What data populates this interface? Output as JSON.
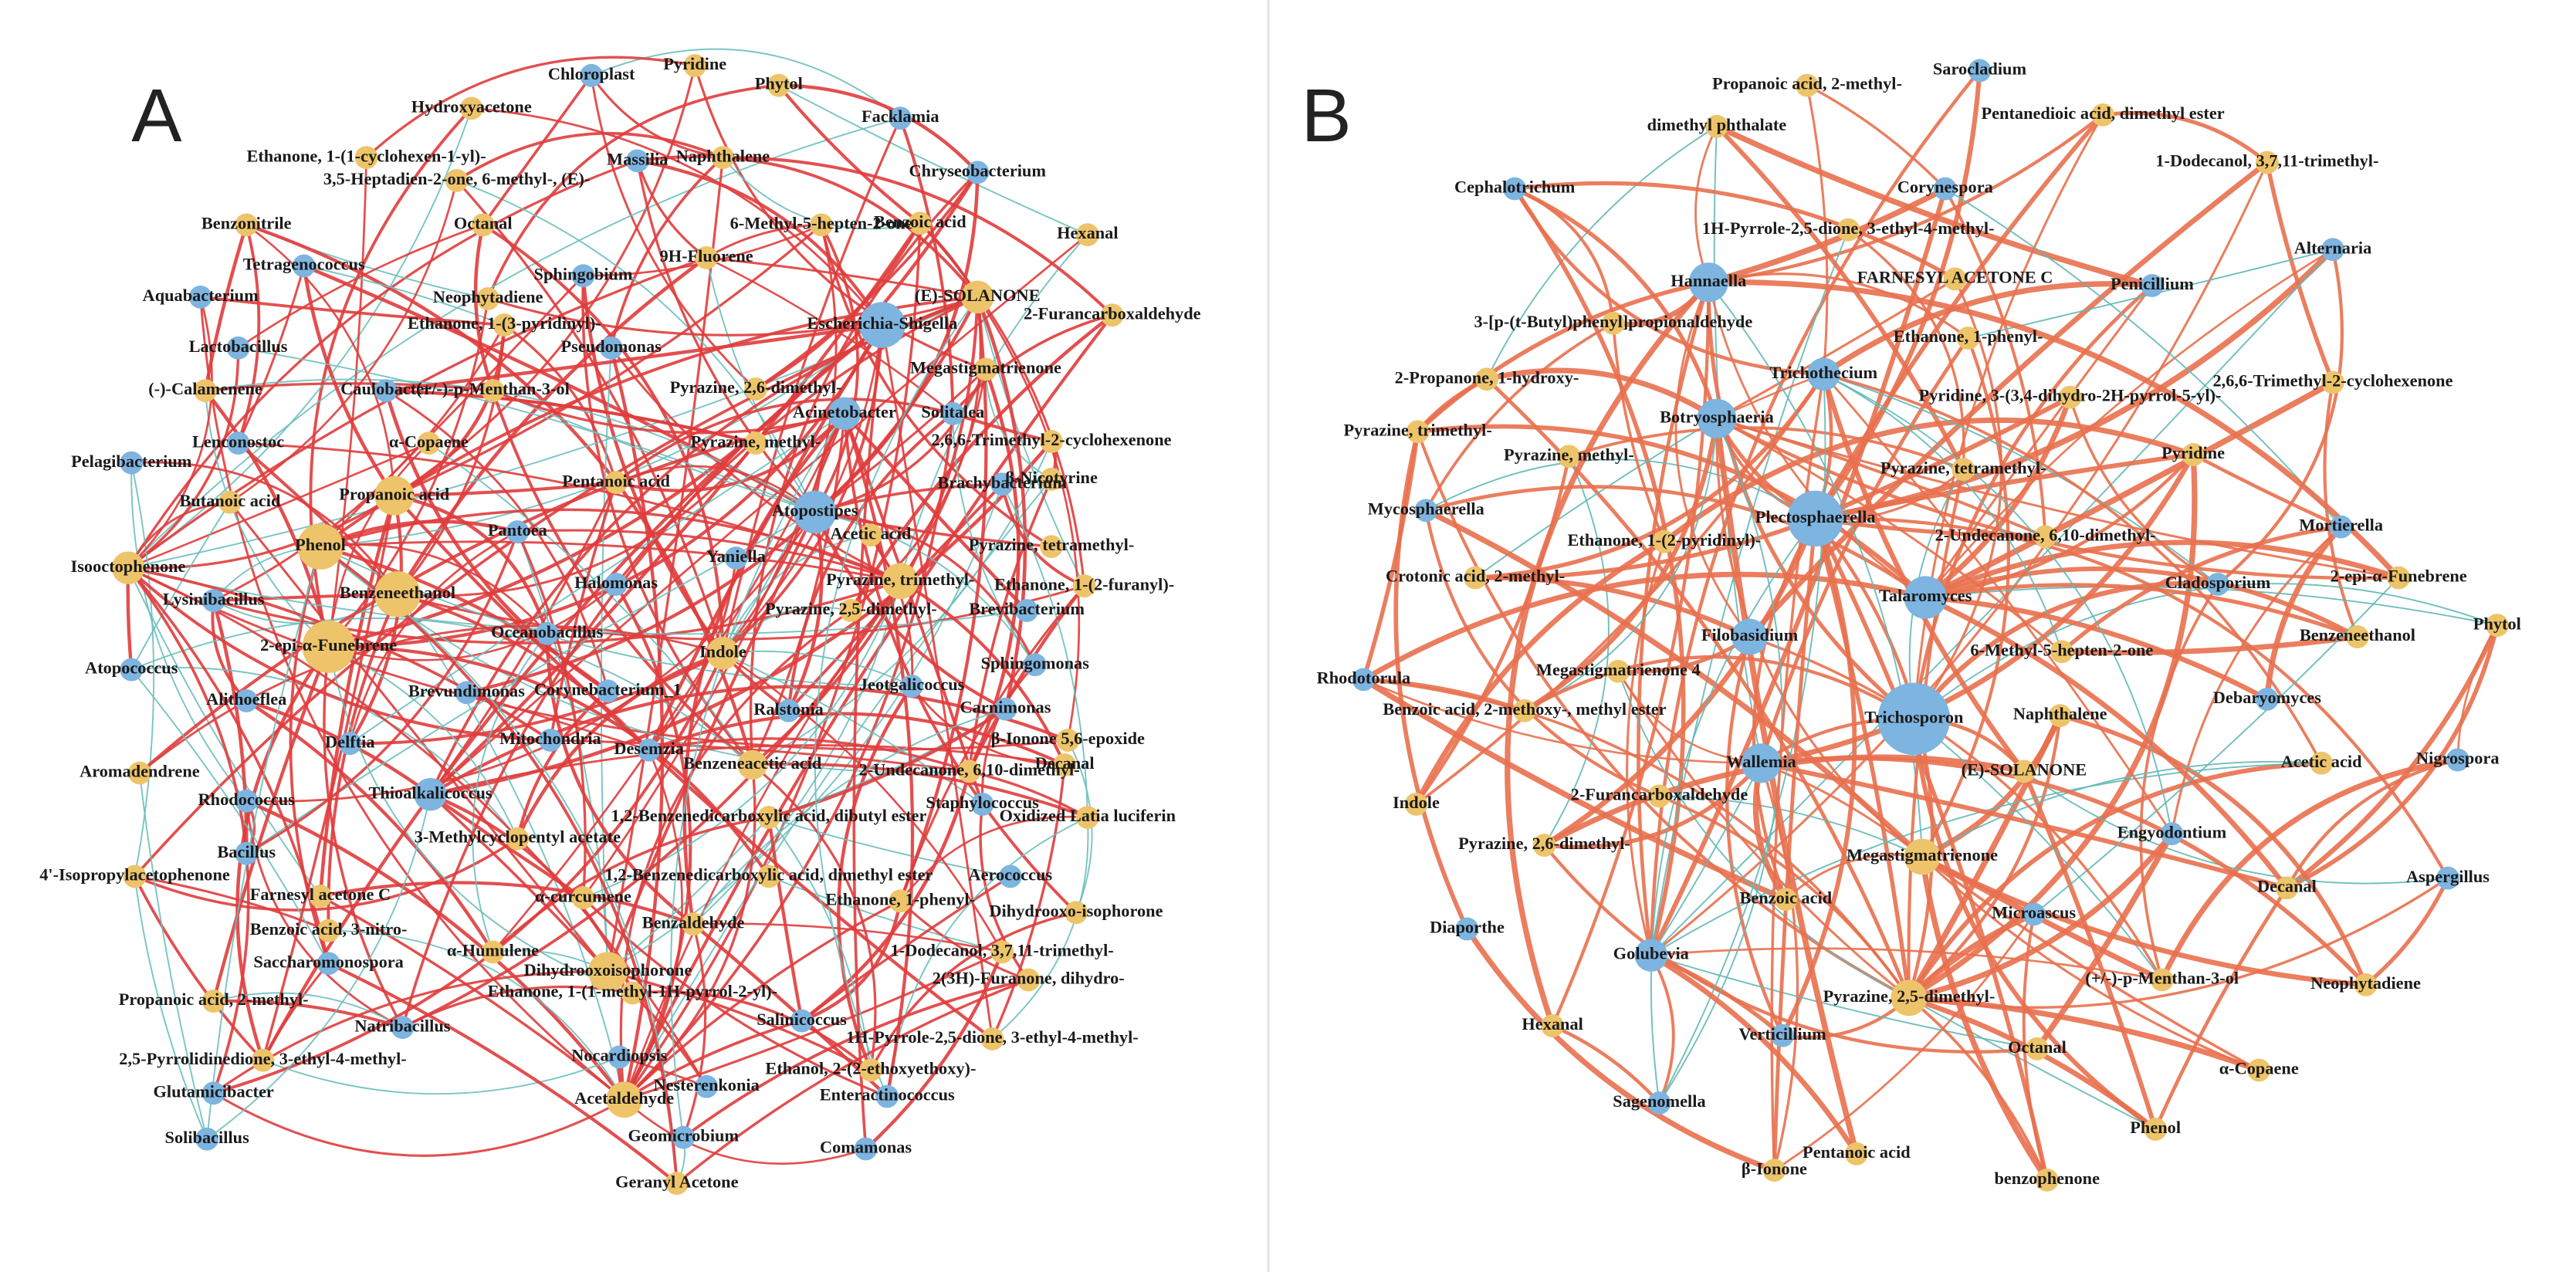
{
  "panels": [
    {
      "label": "A",
      "nodes": [
        {
          "label": "Chloroplast",
          "color": "#7db4e0"
        },
        {
          "label": "Pyridine",
          "color": "#eec46a"
        },
        {
          "label": "Phytol",
          "color": "#eec46a"
        },
        {
          "label": "Hydroxyacetone",
          "color": "#eec46a"
        },
        {
          "label": "Facklamia",
          "color": "#7db4e0"
        },
        {
          "label": "Ethanone, 1-(1-cyclohexen-1-yl)-",
          "color": "#eec46a"
        },
        {
          "label": "Massilia",
          "color": "#7db4e0"
        },
        {
          "label": "Naphthalene",
          "color": "#eec46a"
        },
        {
          "label": "3,5-Heptadien-2-one, 6-methyl-, (E)-",
          "color": "#eec46a"
        },
        {
          "label": "Chryseobacterium",
          "color": "#7db4e0"
        },
        {
          "label": "Benzonitrile",
          "color": "#eec46a"
        },
        {
          "label": "Octanal",
          "color": "#eec46a"
        },
        {
          "label": "6-Methyl-5-hepten-2-one",
          "color": "#eec46a"
        },
        {
          "label": "Benzoic acid",
          "color": "#eec46a"
        },
        {
          "label": "Hexanal",
          "color": "#eec46a"
        },
        {
          "label": "Tetragenococcus",
          "color": "#7db4e0"
        },
        {
          "label": "Sphingobium",
          "color": "#7db4e0"
        },
        {
          "label": "9H-Fluorene",
          "color": "#eec46a"
        },
        {
          "label": "(E)-SOLANONE",
          "color": "#eec46a"
        },
        {
          "label": "Aquabacterium",
          "color": "#7db4e0"
        },
        {
          "label": "Neophytadiene",
          "color": "#eec46a"
        },
        {
          "label": "Escherichia-Shigella",
          "color": "#7db4e0"
        },
        {
          "label": "2-Furancarboxaldehyde",
          "color": "#eec46a"
        },
        {
          "label": "Ethanone, 1-(3-pyridinyl)-",
          "color": "#eec46a"
        },
        {
          "label": "Lactobacillus",
          "color": "#7db4e0"
        },
        {
          "label": "Pseudomonas",
          "color": "#7db4e0"
        },
        {
          "label": "Megastigmatrienone",
          "color": "#eec46a"
        },
        {
          "label": "(-)-Calamenene",
          "color": "#eec46a"
        },
        {
          "label": "Caulobacter",
          "color": "#7db4e0"
        },
        {
          "label": "(+/-)-p-Menthan-3-ol",
          "color": "#eec46a"
        },
        {
          "label": "Pyrazine, 2,6-dimethyl-",
          "color": "#eec46a"
        },
        {
          "label": "Acinetobacter",
          "color": "#7db4e0"
        },
        {
          "label": "Solitalea",
          "color": "#7db4e0"
        },
        {
          "label": "Pyrazine, methyl-",
          "color": "#eec46a"
        },
        {
          "label": "α-Copaene",
          "color": "#eec46a"
        },
        {
          "label": "Lenconostoc",
          "color": "#7db4e0"
        },
        {
          "label": "2,6,6-Trimethyl-2-cyclohexenone",
          "color": "#eec46a"
        },
        {
          "label": "Pelagibacterium",
          "color": "#7db4e0"
        },
        {
          "label": "Butanoic acid",
          "color": "#eec46a"
        },
        {
          "label": "Propanoic acid",
          "color": "#eec46a"
        },
        {
          "label": "Pentanoic acid",
          "color": "#eec46a"
        },
        {
          "label": "Brachybacterium",
          "color": "#7db4e0"
        },
        {
          "label": "β-Nicotyrine",
          "color": "#eec46a"
        },
        {
          "label": "Atopostipes",
          "color": "#7db4e0"
        },
        {
          "label": "Phenol",
          "color": "#eec46a"
        },
        {
          "label": "Pantoea",
          "color": "#7db4e0"
        },
        {
          "label": "Acetic acid",
          "color": "#eec46a"
        },
        {
          "label": "Pyrazine, tetramethyl-",
          "color": "#eec46a"
        },
        {
          "label": "Isooctophenone",
          "color": "#eec46a"
        },
        {
          "label": "Yaniella",
          "color": "#7db4e0"
        },
        {
          "label": "Pyrazine, trimethyl-",
          "color": "#eec46a"
        },
        {
          "label": "Ethanone, 1-(2-furanyl)-",
          "color": "#eec46a"
        },
        {
          "label": "Benzeneethanol",
          "color": "#eec46a"
        },
        {
          "label": "Halomonas",
          "color": "#7db4e0"
        },
        {
          "label": "Lysinibacillus",
          "color": "#7db4e0"
        },
        {
          "label": "Pyrazine, 2,5-dimethyl-",
          "color": "#eec46a"
        },
        {
          "label": "Brevibacterium",
          "color": "#7db4e0"
        },
        {
          "label": "2-epi-α-Funebrene",
          "color": "#eec46a"
        },
        {
          "label": "Oceanobacillus",
          "color": "#7db4e0"
        },
        {
          "label": "Indole",
          "color": "#eec46a"
        },
        {
          "label": "Atopococcus",
          "color": "#7db4e0"
        },
        {
          "label": "Alithoeflea",
          "color": "#7db4e0"
        },
        {
          "label": "Brevundimonas",
          "color": "#7db4e0"
        },
        {
          "label": "Corynebacterium_1",
          "color": "#7db4e0"
        },
        {
          "label": "Sphingomonas",
          "color": "#7db4e0"
        },
        {
          "label": "Jeotgalicoccus",
          "color": "#7db4e0"
        },
        {
          "label": "Ralstonia",
          "color": "#7db4e0"
        },
        {
          "label": "Carnimonas",
          "color": "#7db4e0"
        },
        {
          "label": "Mitochondria",
          "color": "#7db4e0"
        },
        {
          "label": "Delftia",
          "color": "#7db4e0"
        },
        {
          "label": "β-Ionone 5,6-epoxide",
          "color": "#eec46a"
        },
        {
          "label": "Benzeneacetic acid",
          "color": "#eec46a"
        },
        {
          "label": "Desemzia",
          "color": "#7db4e0"
        },
        {
          "label": "2-Undecanone, 6,10-dimethyl-",
          "color": "#eec46a"
        },
        {
          "label": "Decanal",
          "color": "#eec46a"
        },
        {
          "label": "Aromadendrene",
          "color": "#eec46a"
        },
        {
          "label": "Thioalkalicoccus",
          "color": "#7db4e0"
        },
        {
          "label": "Rhodococcus",
          "color": "#7db4e0"
        },
        {
          "label": "Staphylococcus",
          "color": "#7db4e0"
        },
        {
          "label": "1,2-Benzenedicarboxylic acid, dibutyl ester",
          "color": "#eec46a"
        },
        {
          "label": "Oxidized Latia luciferin",
          "color": "#eec46a"
        },
        {
          "label": "Bacillus",
          "color": "#7db4e0"
        },
        {
          "label": "3-Methylcyclopentyl acetate",
          "color": "#eec46a"
        },
        {
          "label": "1,2-Benzenedicarboxylic acid, dimethyl ester",
          "color": "#eec46a"
        },
        {
          "label": "4'-Isopropylacetophenone",
          "color": "#eec46a"
        },
        {
          "label": "Aerococcus",
          "color": "#7db4e0"
        },
        {
          "label": "Dihydrooxo-isophorone",
          "color": "#eec46a"
        },
        {
          "label": "α-curcumene",
          "color": "#eec46a"
        },
        {
          "label": "Farnesyl acetone C",
          "color": "#eec46a"
        },
        {
          "label": "Ethanone, 1-phenyl-",
          "color": "#eec46a"
        },
        {
          "label": "Benzaldehyde",
          "color": "#eec46a"
        },
        {
          "label": "Benzoic acid, 3-nitro-",
          "color": "#eec46a"
        },
        {
          "label": "α-Humulene",
          "color": "#eec46a"
        },
        {
          "label": "Saccharomonospora",
          "color": "#7db4e0"
        },
        {
          "label": "Dihydrooxoisophorone",
          "color": "#eec46a"
        },
        {
          "label": "1-Dodecanol, 3,7,11-trimethyl-",
          "color": "#eec46a"
        },
        {
          "label": "Propanoic acid, 2-methyl-",
          "color": "#eec46a"
        },
        {
          "label": "Ethanone, 1-(1-methyl-1H-pyrrol-2-yl)-",
          "color": "#eec46a"
        },
        {
          "label": "2(3H)-Furanone, dihydro-",
          "color": "#eec46a"
        },
        {
          "label": "Natribacillus",
          "color": "#7db4e0"
        },
        {
          "label": "Salinicoccus",
          "color": "#7db4e0"
        },
        {
          "label": "2,5-Pyrrolidinedione, 3-ethyl-4-methyl-",
          "color": "#eec46a"
        },
        {
          "label": "1H-Pyrrole-2,5-dione, 3-ethyl-4-methyl-",
          "color": "#eec46a"
        },
        {
          "label": "Nocardiopsis",
          "color": "#7db4e0"
        },
        {
          "label": "Glutamicibacter",
          "color": "#7db4e0"
        },
        {
          "label": "Acetaldehyde",
          "color": "#eec46a"
        },
        {
          "label": "Nesterenkonia",
          "color": "#7db4e0"
        },
        {
          "label": "Ethanol, 2-(2-ethoxyethoxy)-",
          "color": "#eec46a"
        },
        {
          "label": "Enteractinococcus",
          "color": "#7db4e0"
        },
        {
          "label": "Solibacillus",
          "color": "#7db4e0"
        },
        {
          "label": "Geomicrobium",
          "color": "#7db4e0"
        },
        {
          "label": "Comamonas",
          "color": "#7db4e0"
        },
        {
          "label": "Geranyl Acetone",
          "color": "#eec46a"
        }
      ]
    },
    {
      "label": "B",
      "nodes": [
        {
          "label": "Sarocladium",
          "color": "#7db4e0"
        },
        {
          "label": "Propanoic acid, 2-methyl-",
          "color": "#eec46a"
        },
        {
          "label": "Pentanedioic acid, dimethyl ester",
          "color": "#eec46a"
        },
        {
          "label": "dimethyl phthalate",
          "color": "#eec46a"
        },
        {
          "label": "1-Dodecanol, 3,7,11-trimethyl-",
          "color": "#eec46a"
        },
        {
          "label": "Corynespora",
          "color": "#7db4e0"
        },
        {
          "label": "Cephalotrichum",
          "color": "#7db4e0"
        },
        {
          "label": "1H-Pyrrole-2,5-dione, 3-ethyl-4-methyl-",
          "color": "#eec46a"
        },
        {
          "label": "Alternaria",
          "color": "#7db4e0"
        },
        {
          "label": "Hannaella",
          "color": "#7db4e0"
        },
        {
          "label": "FARNESYL ACETONE C",
          "color": "#eec46a"
        },
        {
          "label": "Penicillium",
          "color": "#7db4e0"
        },
        {
          "label": "3-[p-(t-Butyl)phenyl]propionaldehyde",
          "color": "#eec46a"
        },
        {
          "label": "Ethanone, 1-phenyl-",
          "color": "#eec46a"
        },
        {
          "label": "2-Propanone, 1-hydroxy-",
          "color": "#eec46a"
        },
        {
          "label": "Trichothecium",
          "color": "#7db4e0"
        },
        {
          "label": "2,6,6-Trimethyl-2-cyclohexenone",
          "color": "#eec46a"
        },
        {
          "label": "Pyridine, 3-(3,4-dihydro-2H-pyrrol-5-yl)-",
          "color": "#eec46a"
        },
        {
          "label": "Botryosphaeria",
          "color": "#7db4e0"
        },
        {
          "label": "Pyrazine, trimethyl-",
          "color": "#eec46a"
        },
        {
          "label": "Pyrazine, methyl-",
          "color": "#eec46a"
        },
        {
          "label": "Pyridine",
          "color": "#eec46a"
        },
        {
          "label": "Pyrazine, tetramethyl-",
          "color": "#eec46a"
        },
        {
          "label": "Mycosphaerella",
          "color": "#7db4e0"
        },
        {
          "label": "Plectosphaerella",
          "color": "#7db4e0"
        },
        {
          "label": "Mortierella",
          "color": "#7db4e0"
        },
        {
          "label": "2-Undecanone, 6,10-dimethyl-",
          "color": "#eec46a"
        },
        {
          "label": "Ethanone, 1-(2-pyridinyl)-",
          "color": "#eec46a"
        },
        {
          "label": "Crotonic acid, 2-methyl-",
          "color": "#eec46a"
        },
        {
          "label": "Cladosporium",
          "color": "#7db4e0"
        },
        {
          "label": "Talaromyces",
          "color": "#7db4e0"
        },
        {
          "label": "2-epi-α-Funebrene",
          "color": "#eec46a"
        },
        {
          "label": "Phytol",
          "color": "#eec46a"
        },
        {
          "label": "Benzeneethanol",
          "color": "#eec46a"
        },
        {
          "label": "Filobasidium",
          "color": "#7db4e0"
        },
        {
          "label": "6-Methyl-5-hepten-2-one",
          "color": "#eec46a"
        },
        {
          "label": "Rhodotorula",
          "color": "#7db4e0"
        },
        {
          "label": "Megastigmatrienone 4",
          "color": "#eec46a"
        },
        {
          "label": "Debaryomyces",
          "color": "#7db4e0"
        },
        {
          "label": "Benzoic acid, 2-methoxy-, methyl ester",
          "color": "#eec46a"
        },
        {
          "label": "Trichosporon",
          "color": "#7db4e0"
        },
        {
          "label": "Naphthalene",
          "color": "#eec46a"
        },
        {
          "label": "Wallemia",
          "color": "#7db4e0"
        },
        {
          "label": "(E)-SOLANONE",
          "color": "#eec46a"
        },
        {
          "label": "Acetic acid",
          "color": "#eec46a"
        },
        {
          "label": "Nigrospora",
          "color": "#7db4e0"
        },
        {
          "label": "Indole",
          "color": "#eec46a"
        },
        {
          "label": "2-Furancarboxaldehyde",
          "color": "#eec46a"
        },
        {
          "label": "Engyodontium",
          "color": "#7db4e0"
        },
        {
          "label": "Pyrazine, 2,6-dimethyl-",
          "color": "#eec46a"
        },
        {
          "label": "Megastigmatrienone",
          "color": "#eec46a"
        },
        {
          "label": "Aspergillus",
          "color": "#7db4e0"
        },
        {
          "label": "Decanal",
          "color": "#eec46a"
        },
        {
          "label": "Benzoic acid",
          "color": "#eec46a"
        },
        {
          "label": "Microascus",
          "color": "#7db4e0"
        },
        {
          "label": "Diaporthe",
          "color": "#7db4e0"
        },
        {
          "label": "Golubevia",
          "color": "#7db4e0"
        },
        {
          "label": "(+/-)-p-Menthan-3-ol",
          "color": "#eec46a"
        },
        {
          "label": "Neophytadiene",
          "color": "#eec46a"
        },
        {
          "label": "Pyrazine, 2,5-dimethyl-",
          "color": "#eec46a"
        },
        {
          "label": "Hexanal",
          "color": "#eec46a"
        },
        {
          "label": "Verticillium",
          "color": "#7db4e0"
        },
        {
          "label": "Octanal",
          "color": "#eec46a"
        },
        {
          "label": "α-Copaene",
          "color": "#eec46a"
        },
        {
          "label": "Sagenomella",
          "color": "#7db4e0"
        },
        {
          "label": "Phenol",
          "color": "#eec46a"
        },
        {
          "label": "Pentanoic acid",
          "color": "#eec46a"
        },
        {
          "label": "β-Ionone",
          "color": "#eec46a"
        },
        {
          "label": "benzophenone",
          "color": "#eec46a"
        }
      ]
    }
  ]
}
